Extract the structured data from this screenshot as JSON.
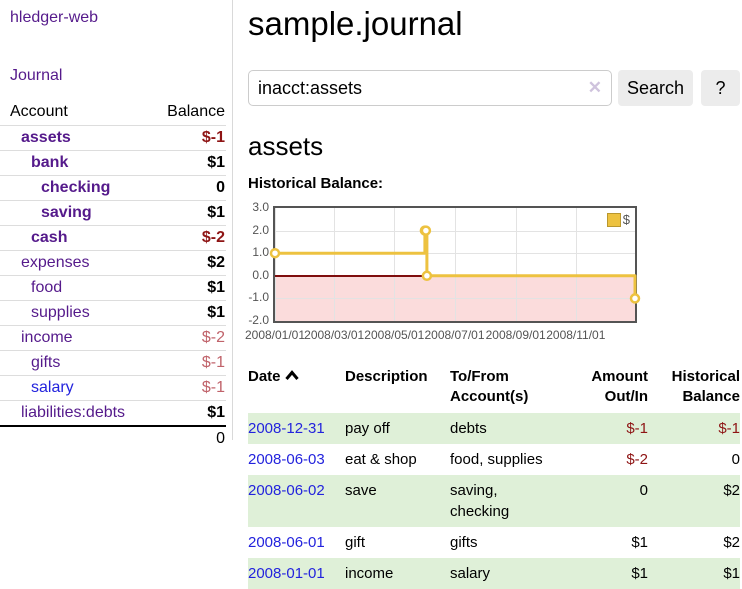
{
  "app": {
    "title": "hledger-web"
  },
  "colors": {
    "link_visited": "#551a8b",
    "link_unvisited": "#2323dd",
    "negative_strong": "#8e1414",
    "negative_soft": "#c0626a",
    "row_stripe": "#dff0d8",
    "series_gold": "#edc240",
    "chart_negative_fill": "#fbdcdc",
    "chart_zero_line": "#7f0d0d"
  },
  "sidebar": {
    "journal_label": "Journal",
    "accounts_table": {
      "account_header": "Account",
      "balance_header": "Balance",
      "rows": [
        {
          "name": "assets",
          "depth": 0,
          "bold": true,
          "balance": "$-1",
          "balance_style": "neg-strong",
          "link_style": "visited"
        },
        {
          "name": "bank",
          "depth": 1,
          "bold": true,
          "balance": "$1",
          "balance_style": "normal",
          "link_style": "visited"
        },
        {
          "name": "checking",
          "depth": 2,
          "bold": true,
          "balance": "0",
          "balance_style": "normal",
          "link_style": "visited"
        },
        {
          "name": "saving",
          "depth": 2,
          "bold": true,
          "balance": "$1",
          "balance_style": "normal",
          "link_style": "visited"
        },
        {
          "name": "cash",
          "depth": 1,
          "bold": true,
          "balance": "$-2",
          "balance_style": "neg-strong",
          "link_style": "visited"
        },
        {
          "name": "expenses",
          "depth": 0,
          "bold": false,
          "balance": "$2",
          "balance_style": "normal",
          "link_style": "visited"
        },
        {
          "name": "food",
          "depth": 1,
          "bold": false,
          "balance": "$1",
          "balance_style": "normal",
          "link_style": "visited"
        },
        {
          "name": "supplies",
          "depth": 1,
          "bold": false,
          "balance": "$1",
          "balance_style": "normal",
          "link_style": "visited"
        },
        {
          "name": "income",
          "depth": 0,
          "bold": false,
          "balance": "$-2",
          "balance_style": "neg-soft",
          "link_style": "visited"
        },
        {
          "name": "gifts",
          "depth": 1,
          "bold": false,
          "balance": "$-1",
          "balance_style": "neg-soft",
          "link_style": "visited"
        },
        {
          "name": "salary",
          "depth": 1,
          "bold": false,
          "balance": "$-1",
          "balance_style": "neg-soft",
          "link_style": "unvisited"
        },
        {
          "name": "liabilities:debts",
          "depth": 0,
          "bold": false,
          "balance": "$1",
          "balance_style": "normal",
          "link_style": "visited"
        }
      ],
      "total": "0"
    }
  },
  "header": {
    "title": "sample.journal"
  },
  "search": {
    "value": "inacct:assets",
    "clear_icon": "✕",
    "button_label": "Search",
    "help_label": "?"
  },
  "account_page": {
    "heading": "assets",
    "chart_label": "Historical Balance:"
  },
  "chart_data": {
    "type": "line",
    "title": "Historical Balance",
    "step": true,
    "series": [
      {
        "name": "$",
        "points": [
          {
            "date": "2008-01-01",
            "value": 1
          },
          {
            "date": "2008-06-01",
            "value": 2
          },
          {
            "date": "2008-06-02",
            "value": 2
          },
          {
            "date": "2008-06-03",
            "value": 0
          },
          {
            "date": "2008-12-31",
            "value": -1
          }
        ]
      }
    ],
    "x_range": [
      "2008-01-01",
      "2008-12-31"
    ],
    "x_tick_labels": [
      "2008/01/01",
      "2008/03/01",
      "2008/05/01",
      "2008/07/01",
      "2008/09/01",
      "2008/11/01"
    ],
    "y_tick_labels": [
      "3.0",
      "2.0",
      "1.0",
      "0.0",
      "-1.0",
      "-2.0"
    ],
    "ylim": [
      -2,
      3
    ],
    "grid": true,
    "legend": "$",
    "legend_position": "top-right",
    "negative_region_below": 0
  },
  "register_table": {
    "headers": {
      "date": "Date",
      "description": "Description",
      "tofrom": "To/From Account(s)",
      "amount": "Amount Out/In",
      "balance": "Historical Balance"
    },
    "rows": [
      {
        "date": "2008-12-31",
        "description": "pay off",
        "accounts": "debts",
        "amount": "$-1",
        "amount_style": "neg",
        "balance": "$-1",
        "balance_style": "neg"
      },
      {
        "date": "2008-06-03",
        "description": "eat & shop",
        "accounts": "food, supplies",
        "amount": "$-2",
        "amount_style": "neg",
        "balance": "0",
        "balance_style": "normal"
      },
      {
        "date": "2008-06-02",
        "description": "save",
        "accounts": "saving, checking",
        "amount": "0",
        "amount_style": "normal",
        "balance": "$2",
        "balance_style": "normal"
      },
      {
        "date": "2008-06-01",
        "description": "gift",
        "accounts": "gifts",
        "amount": "$1",
        "amount_style": "normal",
        "balance": "$2",
        "balance_style": "normal"
      },
      {
        "date": "2008-01-01",
        "description": "income",
        "accounts": "salary",
        "amount": "$1",
        "amount_style": "normal",
        "balance": "$1",
        "balance_style": "normal"
      }
    ]
  }
}
